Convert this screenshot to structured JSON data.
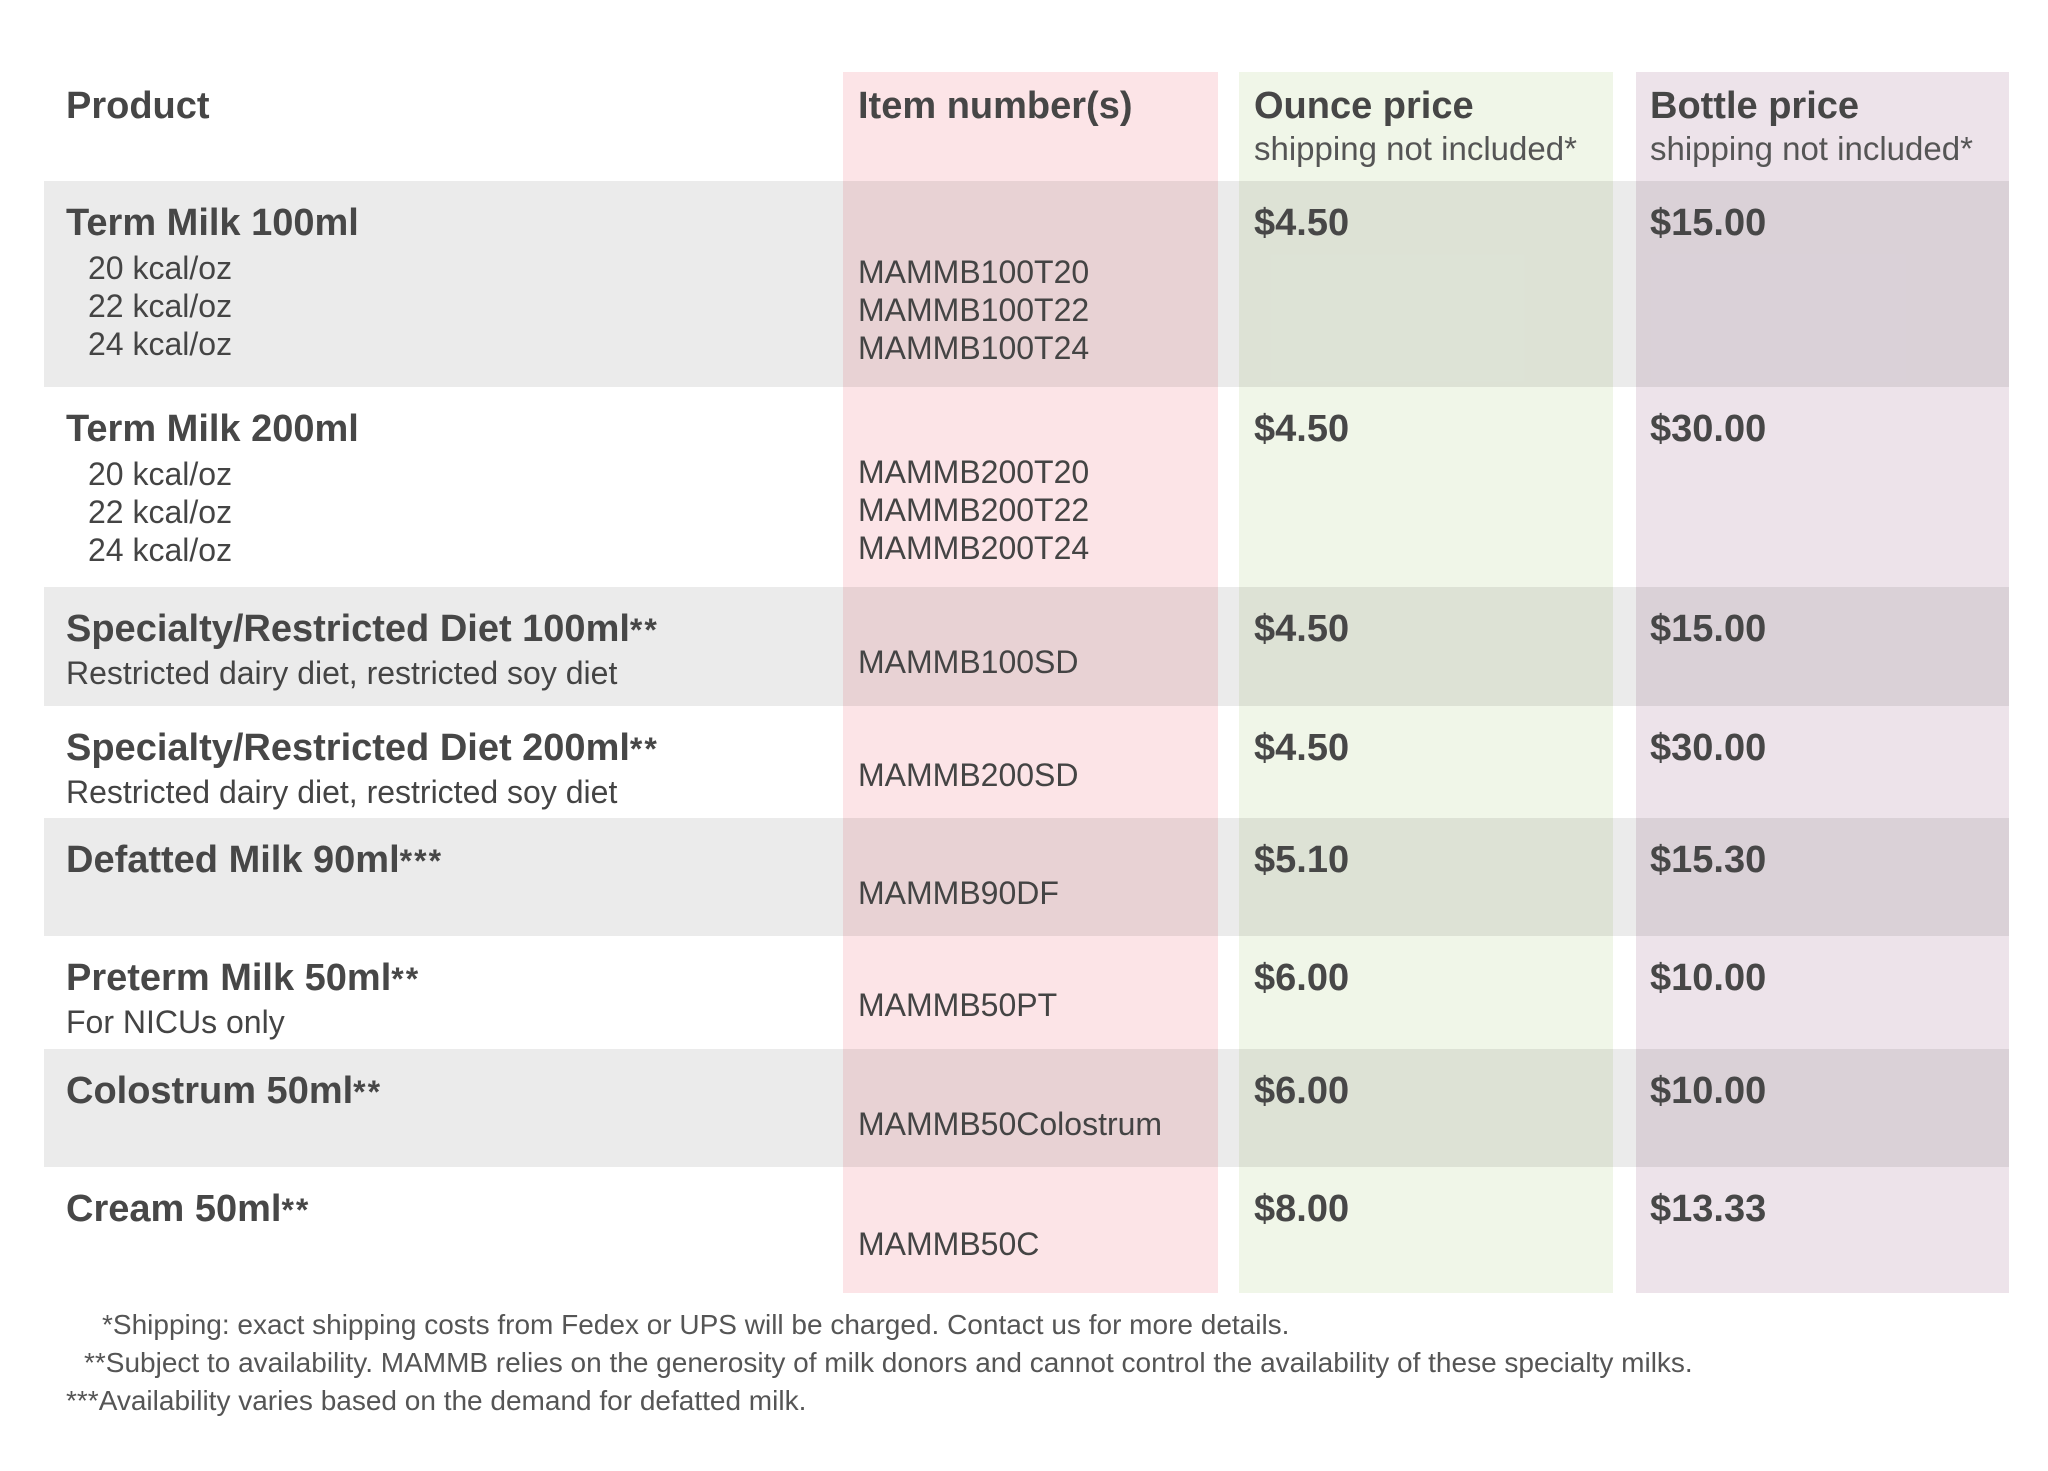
{
  "colors": {
    "item_column": "#fce4e7",
    "ounce_column": "#f0f6e8",
    "bottle_column": "#ede3ea",
    "band": "#ebebeb",
    "text": "#474747"
  },
  "headers": {
    "product": "Product",
    "item": "Item number(s)",
    "ounce": "Ounce price",
    "ounce_note": "shipping not included*",
    "bottle": "Bottle price",
    "bottle_note": "shipping not included*"
  },
  "rows": [
    {
      "name": "Term Milk 100ml",
      "stars": "",
      "options": [
        "20 kcal/oz",
        "22 kcal/oz",
        "24 kcal/oz"
      ],
      "items": [
        "MAMMB100T20",
        "MAMMB100T22",
        "MAMMB100T24"
      ],
      "ounce": "$4.50",
      "bottle": "$15.00",
      "shaded": true
    },
    {
      "name": "Term Milk 200ml",
      "stars": "",
      "options": [
        "20 kcal/oz",
        "22 kcal/oz",
        "24 kcal/oz"
      ],
      "items": [
        "MAMMB200T20",
        "MAMMB200T22",
        "MAMMB200T24"
      ],
      "ounce": "$4.50",
      "bottle": "$30.00",
      "shaded": false
    },
    {
      "name": "Specialty/Restricted Diet 100ml",
      "stars": "**",
      "subtitle": "Restricted dairy diet, restricted soy diet",
      "items": [
        "MAMMB100SD"
      ],
      "ounce": "$4.50",
      "bottle": "$15.00",
      "shaded": true
    },
    {
      "name": "Specialty/Restricted Diet 200ml",
      "stars": "**",
      "subtitle": "Restricted dairy diet, restricted soy diet",
      "items": [
        "MAMMB200SD"
      ],
      "ounce": "$4.50",
      "bottle": "$30.00",
      "shaded": false
    },
    {
      "name": "Defatted Milk 90ml",
      "stars": "***",
      "items": [
        "MAMMB90DF"
      ],
      "ounce": "$5.10",
      "bottle": "$15.30",
      "shaded": true
    },
    {
      "name": "Preterm Milk 50ml",
      "stars": "**",
      "subtitle": "For NICUs only",
      "items": [
        "MAMMB50PT"
      ],
      "ounce": "$6.00",
      "bottle": "$10.00",
      "shaded": false
    },
    {
      "name": "Colostrum 50ml",
      "stars": "**",
      "items": [
        "MAMMB50Colostrum"
      ],
      "ounce": "$6.00",
      "bottle": "$10.00",
      "shaded": true
    },
    {
      "name": "Cream 50ml",
      "stars": "**",
      "items": [
        "MAMMB50C"
      ],
      "ounce": "$8.00",
      "bottle": "$13.33",
      "shaded": false
    }
  ],
  "footnotes": [
    "*Shipping: exact shipping costs from Fedex or UPS will be charged. Contact us for more details.",
    "**Subject to availability. MAMMB relies on the generosity of milk donors and cannot control the availability of these specialty milks.",
    "***Availability varies based on the demand for defatted milk."
  ]
}
